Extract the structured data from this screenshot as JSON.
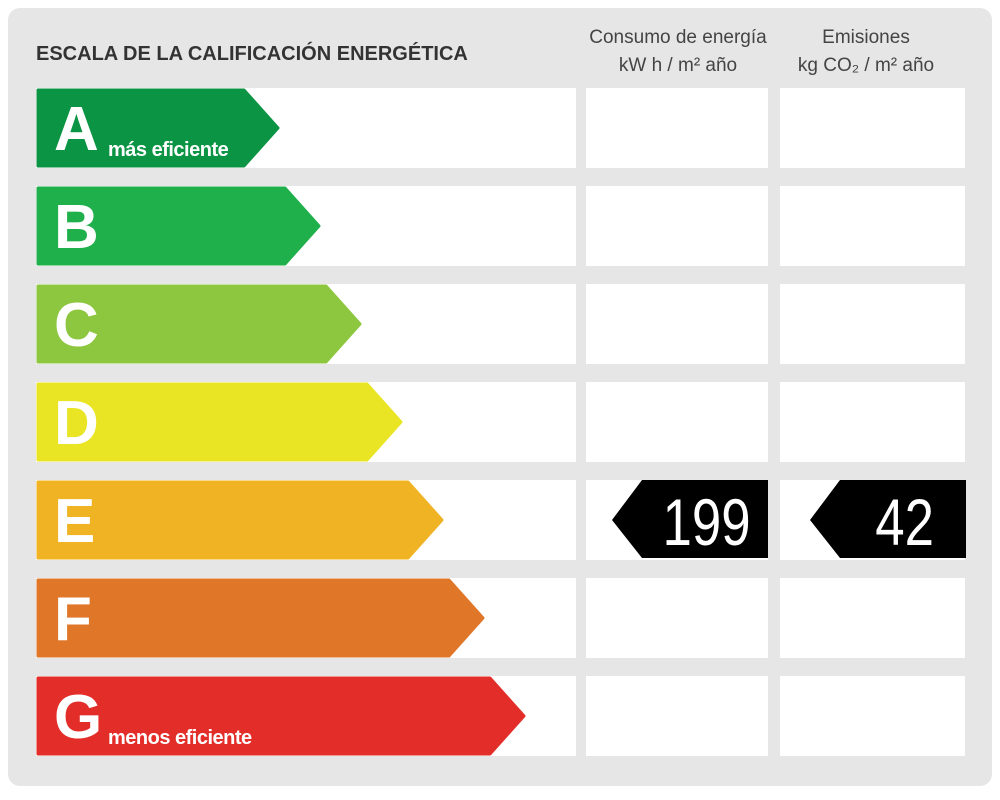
{
  "title": "ESCALA DE LA CALIFICACIÓN ENERGÉTICA",
  "columns": {
    "consumption": {
      "line1": "Consumo de energía",
      "line2": "kW h  / m² año"
    },
    "emissions": {
      "line1": "Emisiones",
      "line2": "kg CO₂  / m² año"
    }
  },
  "rows": [
    {
      "letter": "A",
      "note": "más eficiente",
      "color": "#0b9444"
    },
    {
      "letter": "B",
      "color": "#1fb04b"
    },
    {
      "letter": "C",
      "color": "#8dc63f"
    },
    {
      "letter": "D",
      "color": "#e9e524"
    },
    {
      "letter": "E",
      "color": "#efb324"
    },
    {
      "letter": "F",
      "color": "#e07628"
    },
    {
      "letter": "G",
      "note": "menos eficiente",
      "color": "#e32d29"
    }
  ],
  "rating": {
    "letter": "E",
    "consumption": "199",
    "emissions": "42"
  }
}
